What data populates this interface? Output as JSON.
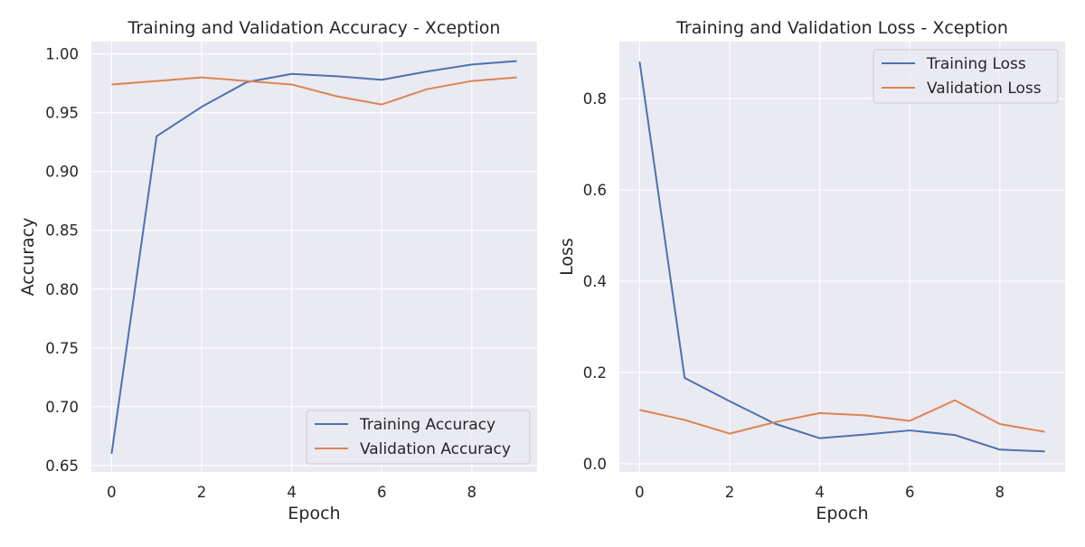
{
  "chart_data": [
    {
      "type": "line",
      "title": "Training and Validation Accuracy - Xception",
      "xlabel": "Epoch",
      "ylabel": "Accuracy",
      "x": [
        0,
        1,
        2,
        3,
        4,
        5,
        6,
        7,
        8,
        9
      ],
      "xlim": [
        -0.45,
        9.45
      ],
      "ylim": [
        0.6445,
        1.0105
      ],
      "xticks": [
        "0",
        "2",
        "4",
        "6",
        "8"
      ],
      "yticks": [
        "0.65",
        "0.70",
        "0.75",
        "0.80",
        "0.85",
        "0.90",
        "0.95",
        "1.00"
      ],
      "grid": true,
      "legend_position": "lower-right",
      "series": [
        {
          "name": "Training Accuracy",
          "color": "#4c72b0",
          "values": [
            0.66,
            0.93,
            0.955,
            0.976,
            0.983,
            0.981,
            0.978,
            0.985,
            0.991,
            0.994
          ]
        },
        {
          "name": "Validation Accuracy",
          "color": "#dd8452",
          "values": [
            0.974,
            0.977,
            0.98,
            0.977,
            0.974,
            0.964,
            0.957,
            0.97,
            0.977,
            0.98
          ]
        }
      ]
    },
    {
      "type": "line",
      "title": "Training and Validation Loss - Xception",
      "xlabel": "Epoch",
      "ylabel": "Loss",
      "x": [
        0,
        1,
        2,
        3,
        4,
        5,
        6,
        7,
        8,
        9
      ],
      "xlim": [
        -0.45,
        9.45
      ],
      "ylim": [
        -0.018,
        0.925
      ],
      "xticks": [
        "0",
        "2",
        "4",
        "6",
        "8"
      ],
      "yticks": [
        "0.0",
        "0.2",
        "0.4",
        "0.6",
        "0.8"
      ],
      "grid": true,
      "legend_position": "top-right",
      "series": [
        {
          "name": "Training Loss",
          "color": "#4c72b0",
          "values": [
            0.881,
            0.188,
            0.137,
            0.088,
            0.056,
            0.064,
            0.073,
            0.063,
            0.031,
            0.027
          ]
        },
        {
          "name": "Validation Loss",
          "color": "#dd8452",
          "values": [
            0.118,
            0.096,
            0.066,
            0.091,
            0.111,
            0.106,
            0.094,
            0.139,
            0.087,
            0.07
          ]
        }
      ]
    }
  ]
}
